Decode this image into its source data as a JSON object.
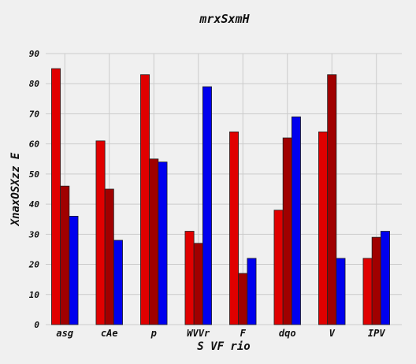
{
  "chart_data": {
    "type": "bar",
    "title": "mrxSxmH",
    "xlabel": "S VF rio",
    "ylabel": "XnaxOSXzz E",
    "categories": [
      "asg",
      "cAe",
      "p",
      "WVVr",
      "F",
      "dqo",
      "V",
      "IPV"
    ],
    "ylim": [
      0,
      90
    ],
    "yticks": [
      0,
      10,
      20,
      30,
      40,
      50,
      60,
      70,
      80,
      90
    ],
    "grid": true,
    "legend": "none",
    "series": [
      {
        "color": "#e00000",
        "values": [
          85,
          61,
          83,
          31,
          64,
          38,
          64,
          22
        ]
      },
      {
        "color": "#a00000",
        "values": [
          46,
          45,
          55,
          27,
          17,
          62,
          83,
          29
        ]
      },
      {
        "color": "#0000ee",
        "values": [
          36,
          28,
          54,
          79,
          22,
          69,
          22,
          31
        ]
      }
    ]
  }
}
